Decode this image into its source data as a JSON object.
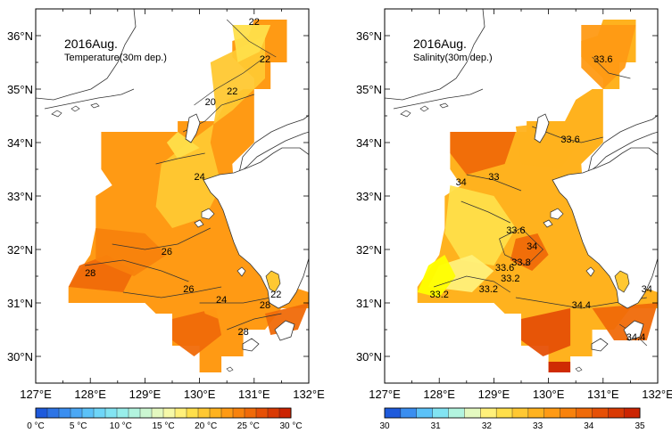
{
  "panels": [
    {
      "title": "2016Aug.",
      "subtitle": "Temperature(30m dep.)",
      "colorbar_labels": [
        "0 °C",
        "5 °C",
        "10 °C",
        "15 °C",
        "20 °C",
        "25 °C",
        "30 °C"
      ],
      "colorbar_colors": [
        "#1e5adc",
        "#2d74e6",
        "#3a8ef0",
        "#4ba8f5",
        "#5bc2f8",
        "#6ed6f8",
        "#82e4f2",
        "#98eeea",
        "#b2f4df",
        "#ccf7d2",
        "#e4f9c0",
        "#f6f9a8",
        "#fff07a",
        "#ffdf4a",
        "#ffc832",
        "#ffb21e",
        "#ff9a14",
        "#f8820c",
        "#f06a08",
        "#e65006",
        "#d93a04",
        "#cc2402"
      ],
      "contour_labels": [
        "22",
        "20",
        "22",
        "22",
        "24",
        "26",
        "28",
        "26",
        "24",
        "22",
        "28",
        "28"
      ]
    },
    {
      "title": "2016Aug.",
      "subtitle": "Salinity(30m dep.)",
      "colorbar_labels": [
        "30",
        "31",
        "32",
        "33",
        "34",
        "35"
      ],
      "colorbar_colors": [
        "#1e5adc",
        "#3a8ef0",
        "#5bc2f8",
        "#82e4f2",
        "#b2f4df",
        "#e4f9c0",
        "#fff07a",
        "#ffdf4a",
        "#ffc832",
        "#ffb21e",
        "#ff9a14",
        "#f8820c",
        "#f06a08",
        "#e65006",
        "#d93a04",
        "#cc2402"
      ],
      "contour_labels": [
        "33.6",
        "33.6",
        "34",
        "33",
        "33.6",
        "34",
        "33.8",
        "33.6",
        "33.2",
        "33.2",
        "33.2",
        "34.4",
        "34",
        "34.4"
      ]
    }
  ],
  "axes": {
    "x_ticks": [
      "127°E",
      "128°E",
      "129°E",
      "130°E",
      "131°E",
      "132°E"
    ],
    "y_ticks": [
      "36°N",
      "35°N",
      "34°N",
      "33°N",
      "32°N",
      "31°N",
      "30°N"
    ]
  }
}
